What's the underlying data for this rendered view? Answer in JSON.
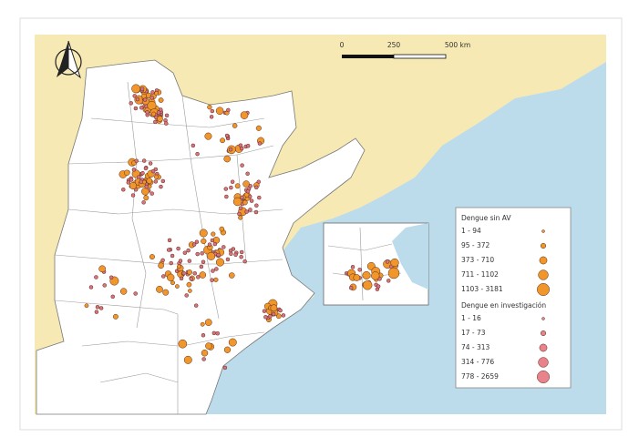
{
  "scale_bar": {
    "labels": [
      "0",
      "250",
      "500 km"
    ]
  },
  "legend": {
    "groups": [
      {
        "title": "Dengue sin AV",
        "items": [
          "1 - 94",
          "95 - 372",
          "373 - 710",
          "711 - 1102",
          "1103 - 3181"
        ]
      },
      {
        "title": "Dengue en investigación",
        "items": [
          "1 - 16",
          "17 - 73",
          "74 - 313",
          "314 - 776",
          "778 - 2659"
        ]
      }
    ]
  }
}
